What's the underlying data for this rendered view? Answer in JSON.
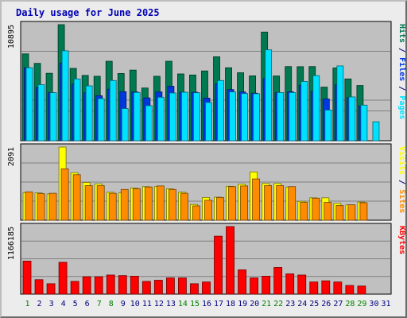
{
  "title": "Daily usage for June 2025",
  "colors": {
    "hits": "#007850",
    "files": "#0038e0",
    "pages": "#00e0ff",
    "visits": "#ffff00",
    "sites": "#ff8c00",
    "kbytes": "#ff0000",
    "weekend_label": "#008000",
    "weekday_label": "#000080",
    "panel_bg": "#c0c0c0",
    "outer_bg": "#ececec"
  },
  "chart_data": [
    {
      "type": "bar",
      "panel": "hits-files-pages",
      "y_max_label": "10895",
      "ylim": [
        0,
        10895
      ],
      "y_right_labels": [
        {
          "text": "Pages",
          "color_key": "pages"
        },
        {
          "text": " / ",
          "color_key": "sep"
        },
        {
          "text": "Files",
          "color_key": "files"
        },
        {
          "text": " / ",
          "color_key": "sep"
        },
        {
          "text": "Hits",
          "color_key": "hits"
        }
      ],
      "x": [
        1,
        2,
        3,
        4,
        5,
        6,
        7,
        8,
        9,
        10,
        11,
        12,
        13,
        14,
        15,
        16,
        17,
        18,
        19,
        20,
        21,
        22,
        23,
        24,
        25,
        26,
        27,
        28,
        29,
        30,
        31
      ],
      "series": [
        {
          "name": "Hits",
          "color_key": "hits",
          "values": [
            8150,
            7260,
            6330,
            10895,
            6790,
            6130,
            6050,
            7460,
            6310,
            6630,
            4950,
            6050,
            7460,
            6270,
            6170,
            6550,
            7880,
            6850,
            6380,
            6090,
            10200,
            6080,
            6960,
            6950,
            6960,
            5030,
            6830,
            5800,
            5180,
            null,
            null
          ]
        },
        {
          "name": "Files",
          "color_key": "files",
          "values": [
            6850,
            5000,
            4510,
            7290,
            5310,
            4510,
            4220,
            4830,
            4600,
            4580,
            4020,
            4580,
            5110,
            4550,
            4550,
            4000,
            5350,
            4800,
            4580,
            4460,
            5850,
            4500,
            4600,
            5210,
            4630,
            3920,
            5250,
            4040,
            3270,
            null,
            null
          ]
        },
        {
          "name": "Pages",
          "color_key": "pages",
          "values": [
            6850,
            5260,
            4510,
            8440,
            5800,
            5150,
            3950,
            5650,
            3020,
            4530,
            3290,
            4080,
            4480,
            4550,
            4500,
            3590,
            5650,
            4580,
            4430,
            4410,
            8530,
            4520,
            4520,
            5560,
            6110,
            2880,
            7020,
            4110,
            3340,
            1780,
            null
          ]
        }
      ],
      "x_range": [
        1,
        31
      ]
    },
    {
      "type": "bar",
      "panel": "visits-sites",
      "y_max_label": "2091",
      "ylim": [
        0,
        2091
      ],
      "y_right_labels": [
        {
          "text": "Sites",
          "color_key": "sites"
        },
        {
          "text": " / ",
          "color_key": "sep"
        },
        {
          "text": "Visits",
          "color_key": "visits"
        }
      ],
      "x": [
        1,
        2,
        3,
        4,
        5,
        6,
        7,
        8,
        9,
        10,
        11,
        12,
        13,
        14,
        15,
        16,
        17,
        18,
        19,
        20,
        21,
        22,
        23,
        24,
        25,
        26,
        27,
        28,
        29,
        30,
        31
      ],
      "series": [
        {
          "name": "Visits",
          "color_key": "visits",
          "values": [
            790,
            780,
            750,
            2091,
            1360,
            1080,
            1040,
            800,
            780,
            920,
            960,
            960,
            900,
            800,
            450,
            650,
            660,
            970,
            1030,
            1380,
            1050,
            1050,
            950,
            540,
            640,
            640,
            480,
            440,
            520,
            null,
            null
          ]
        },
        {
          "name": "Sites",
          "color_key": "sites",
          "values": [
            810,
            760,
            770,
            1470,
            1300,
            990,
            990,
            770,
            880,
            900,
            950,
            980,
            880,
            770,
            410,
            570,
            650,
            960,
            980,
            1180,
            990,
            990,
            960,
            510,
            630,
            510,
            420,
            440,
            500,
            null,
            null
          ]
        }
      ]
    },
    {
      "type": "bar",
      "panel": "kbytes",
      "y_max_label": "1166185",
      "ylim": [
        0,
        1166185
      ],
      "y_right_labels": [
        {
          "text": "KBytes",
          "color_key": "kbytes"
        }
      ],
      "x": [
        1,
        2,
        3,
        4,
        5,
        6,
        7,
        8,
        9,
        10,
        11,
        12,
        13,
        14,
        15,
        16,
        17,
        18,
        19,
        20,
        21,
        22,
        23,
        24,
        25,
        26,
        27,
        28,
        29,
        30,
        31
      ],
      "series": [
        {
          "name": "KBytes",
          "color_key": "kbytes",
          "values": [
            570000,
            250000,
            180000,
            550000,
            220000,
            300000,
            300000,
            330000,
            320000,
            310000,
            220000,
            240000,
            280000,
            280000,
            180000,
            210000,
            1000000,
            1166185,
            420000,
            280000,
            310000,
            460000,
            350000,
            330000,
            210000,
            230000,
            210000,
            150000,
            140000,
            null,
            null
          ]
        }
      ]
    }
  ],
  "x_labels": [
    {
      "text": "1",
      "weekend": true
    },
    {
      "text": "2",
      "weekend": false
    },
    {
      "text": "3",
      "weekend": false
    },
    {
      "text": "4",
      "weekend": false
    },
    {
      "text": "5",
      "weekend": false
    },
    {
      "text": "6",
      "weekend": false
    },
    {
      "text": "7",
      "weekend": true
    },
    {
      "text": "8",
      "weekend": true
    },
    {
      "text": "9",
      "weekend": false
    },
    {
      "text": "10",
      "weekend": false
    },
    {
      "text": "11",
      "weekend": false
    },
    {
      "text": "12",
      "weekend": false
    },
    {
      "text": "13",
      "weekend": false
    },
    {
      "text": "14",
      "weekend": true
    },
    {
      "text": "15",
      "weekend": true
    },
    {
      "text": "16",
      "weekend": false
    },
    {
      "text": "17",
      "weekend": false
    },
    {
      "text": "18",
      "weekend": false
    },
    {
      "text": "19",
      "weekend": false
    },
    {
      "text": "20",
      "weekend": false
    },
    {
      "text": "21",
      "weekend": true
    },
    {
      "text": "22",
      "weekend": true
    },
    {
      "text": "23",
      "weekend": false
    },
    {
      "text": "24",
      "weekend": false
    },
    {
      "text": "25",
      "weekend": false
    },
    {
      "text": "26",
      "weekend": false
    },
    {
      "text": "27",
      "weekend": false
    },
    {
      "text": "28",
      "weekend": true
    },
    {
      "text": "29",
      "weekend": true
    },
    {
      "text": "30",
      "weekend": false
    },
    {
      "text": "31",
      "weekend": false
    }
  ]
}
